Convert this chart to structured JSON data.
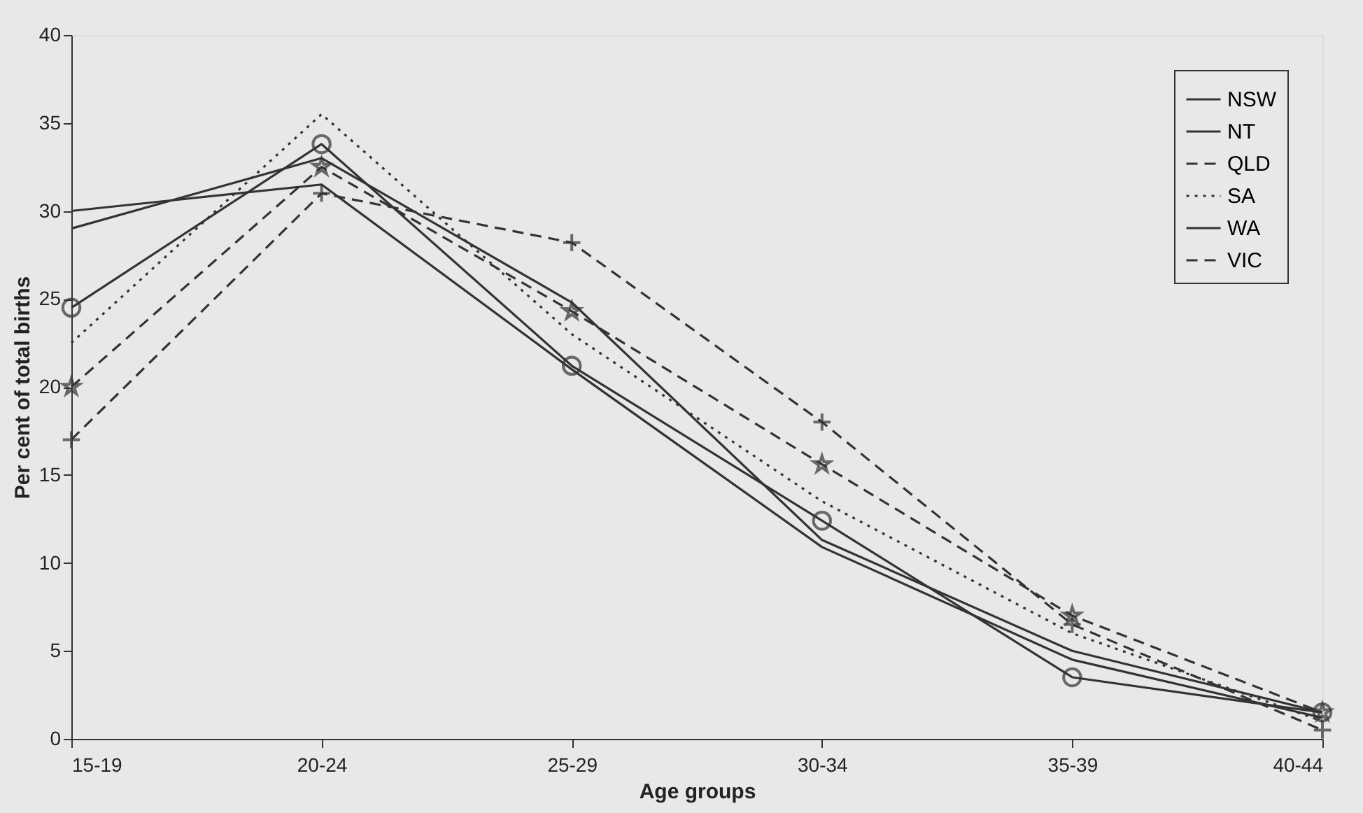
{
  "chart_data": {
    "type": "line",
    "xlabel": "Age groups",
    "ylabel": "Per cent of total births",
    "categories": [
      "15-19",
      "20-24",
      "25-29",
      "30-34",
      "35-39",
      "40-44"
    ],
    "ylim": [
      0,
      40
    ],
    "yticks": [
      0,
      5,
      10,
      15,
      20,
      25,
      30,
      35,
      40
    ],
    "grid": false,
    "legend": "top right",
    "series": [
      {
        "name": "NSW",
        "color": "#333333",
        "marker": "circle",
        "line_style": "solid",
        "values": [
          24.5,
          33.8,
          21.2,
          12.4,
          3.5,
          1.5
        ]
      },
      {
        "name": "NT",
        "color": "#333333",
        "marker": "none",
        "line_style": "solid",
        "values": [
          30,
          31.5,
          21,
          10.9,
          4.5,
          1.2
        ]
      },
      {
        "name": "QLD",
        "color": "#333333",
        "marker": "star",
        "line_style": "dashed",
        "values": [
          20,
          32.5,
          24.3,
          15.6,
          7,
          1.5
        ]
      },
      {
        "name": "SA",
        "color": "#333333",
        "marker": "none",
        "line_style": "dotted",
        "values": [
          22.5,
          35.5,
          23,
          13.5,
          6,
          1
        ]
      },
      {
        "name": "WA",
        "color": "#333333",
        "marker": "none",
        "line_style": "solid",
        "values": [
          29,
          33,
          24.8,
          11.3,
          5,
          1.5
        ]
      },
      {
        "name": "VIC",
        "color": "#333333",
        "marker": "cross",
        "line_style": "dashed",
        "values": [
          17,
          31,
          28.2,
          18,
          6.5,
          0.5
        ]
      }
    ]
  }
}
